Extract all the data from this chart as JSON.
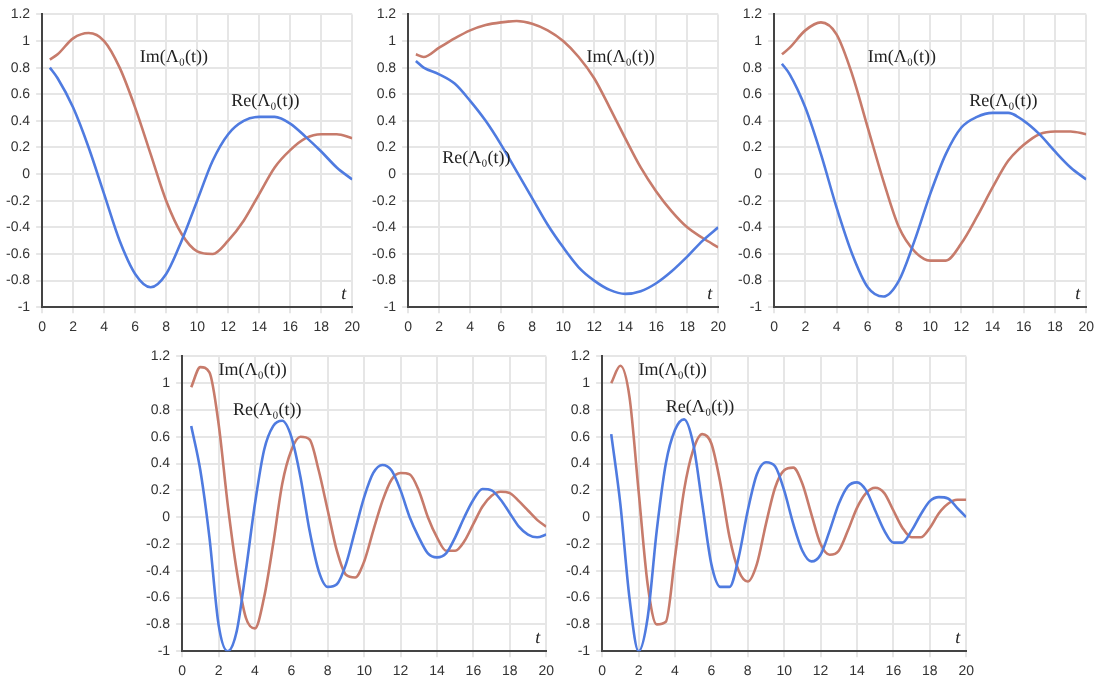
{
  "chart_data": [
    {
      "type": "line",
      "xlabel": "t",
      "grid": true,
      "xlim": [
        0,
        20
      ],
      "xticks": [
        0,
        2,
        4,
        6,
        8,
        10,
        12,
        14,
        16,
        18,
        20
      ],
      "ylim": [
        -1,
        1.2
      ],
      "yticks": [
        -1,
        -0.8,
        -0.6,
        -0.4,
        -0.2,
        0,
        0.2,
        0.4,
        0.6,
        0.8,
        1,
        1.2
      ],
      "x": [
        0.5,
        1,
        2,
        3,
        4,
        5,
        6,
        7,
        8,
        9,
        10,
        11,
        12,
        13,
        14,
        15,
        16,
        17,
        18,
        19,
        20
      ],
      "series": [
        {
          "name": "Re(Λ₀(t))",
          "color": "#4f7be0",
          "values": [
            0.8,
            0.72,
            0.5,
            0.2,
            -0.15,
            -0.5,
            -0.75,
            -0.85,
            -0.75,
            -0.5,
            -0.2,
            0.1,
            0.3,
            0.4,
            0.43,
            0.43,
            0.38,
            0.28,
            0.17,
            0.05,
            -0.04
          ]
        },
        {
          "name": "Im(Λ₀(t))",
          "color": "#c77b6b",
          "values": [
            0.86,
            0.9,
            1.02,
            1.06,
            1.0,
            0.8,
            0.5,
            0.15,
            -0.2,
            -0.45,
            -0.58,
            -0.6,
            -0.5,
            -0.35,
            -0.15,
            0.05,
            0.18,
            0.27,
            0.3,
            0.3,
            0.27
          ]
        }
      ]
    },
    {
      "type": "line",
      "xlabel": "t",
      "grid": true,
      "xlim": [
        0,
        20
      ],
      "xticks": [
        0,
        2,
        4,
        6,
        8,
        10,
        12,
        14,
        16,
        18,
        20
      ],
      "ylim": [
        -1,
        1.2
      ],
      "yticks": [
        -1,
        -0.8,
        -0.6,
        -0.4,
        -0.2,
        0,
        0.2,
        0.4,
        0.6,
        0.8,
        1,
        1.2
      ],
      "x": [
        0.5,
        1,
        2,
        3,
        4,
        5,
        6,
        7,
        8,
        9,
        10,
        11,
        12,
        13,
        14,
        15,
        16,
        17,
        18,
        19,
        20
      ],
      "series": [
        {
          "name": "Re(Λ₀(t))",
          "color": "#4f7be0",
          "values": [
            0.85,
            0.8,
            0.75,
            0.68,
            0.55,
            0.4,
            0.22,
            0.02,
            -0.18,
            -0.38,
            -0.55,
            -0.7,
            -0.8,
            -0.87,
            -0.9,
            -0.88,
            -0.82,
            -0.73,
            -0.62,
            -0.5,
            -0.4
          ]
        },
        {
          "name": "Im(Λ₀(t))",
          "color": "#c77b6b",
          "values": [
            0.9,
            0.88,
            0.95,
            1.02,
            1.08,
            1.12,
            1.14,
            1.15,
            1.13,
            1.08,
            1.0,
            0.88,
            0.72,
            0.5,
            0.27,
            0.05,
            -0.13,
            -0.28,
            -0.4,
            -0.48,
            -0.55
          ]
        }
      ]
    },
    {
      "type": "line",
      "xlabel": "t",
      "grid": true,
      "xlim": [
        0,
        20
      ],
      "xticks": [
        0,
        2,
        4,
        6,
        8,
        10,
        12,
        14,
        16,
        18,
        20
      ],
      "ylim": [
        -1,
        1.2
      ],
      "yticks": [
        -1,
        -0.8,
        -0.6,
        -0.4,
        -0.2,
        0,
        0.2,
        0.4,
        0.6,
        0.8,
        1,
        1.2
      ],
      "x": [
        0.5,
        1,
        2,
        3,
        4,
        5,
        6,
        7,
        8,
        9,
        10,
        11,
        12,
        13,
        14,
        15,
        16,
        17,
        18,
        19,
        20
      ],
      "series": [
        {
          "name": "Re(Λ₀(t))",
          "color": "#4f7be0",
          "values": [
            0.83,
            0.75,
            0.5,
            0.15,
            -0.25,
            -0.6,
            -0.85,
            -0.92,
            -0.8,
            -0.5,
            -0.15,
            0.15,
            0.35,
            0.43,
            0.46,
            0.46,
            0.4,
            0.3,
            0.17,
            0.05,
            -0.04
          ]
        },
        {
          "name": "Im(Λ₀(t))",
          "color": "#c77b6b",
          "values": [
            0.9,
            0.95,
            1.08,
            1.14,
            1.05,
            0.75,
            0.35,
            -0.05,
            -0.4,
            -0.58,
            -0.65,
            -0.65,
            -0.52,
            -0.32,
            -0.1,
            0.1,
            0.22,
            0.3,
            0.32,
            0.32,
            0.3
          ]
        }
      ]
    },
    {
      "type": "line",
      "xlabel": "t",
      "grid": true,
      "xlim": [
        0,
        20
      ],
      "xticks": [
        0,
        2,
        4,
        6,
        8,
        10,
        12,
        14,
        16,
        18,
        20
      ],
      "ylim": [
        -1,
        1.2
      ],
      "yticks": [
        -1,
        -0.8,
        -0.6,
        -0.4,
        -0.2,
        0,
        0.2,
        0.4,
        0.6,
        0.8,
        1,
        1.2
      ],
      "x": [
        0.5,
        1,
        1.5,
        2,
        2.5,
        3,
        3.5,
        4,
        4.5,
        5,
        5.5,
        6,
        6.5,
        7,
        7.5,
        8,
        8.5,
        9,
        9.5,
        10,
        10.5,
        11,
        11.5,
        12,
        12.5,
        13,
        13.5,
        14,
        14.5,
        15,
        15.5,
        16,
        16.5,
        17,
        17.5,
        18,
        18.5,
        19,
        19.5,
        20
      ],
      "series": [
        {
          "name": "Re(Λ₀(t))",
          "color": "#4f7be0",
          "values": [
            0.68,
            0.35,
            -0.15,
            -0.8,
            -1.0,
            -0.85,
            -0.4,
            0.1,
            0.5,
            0.68,
            0.72,
            0.6,
            0.3,
            -0.1,
            -0.4,
            -0.52,
            -0.5,
            -0.35,
            -0.1,
            0.15,
            0.33,
            0.39,
            0.35,
            0.2,
            0.0,
            -0.15,
            -0.27,
            -0.3,
            -0.27,
            -0.15,
            0.0,
            0.13,
            0.21,
            0.2,
            0.13,
            0.03,
            -0.07,
            -0.13,
            -0.15,
            -0.13
          ]
        },
        {
          "name": "Im(Λ₀(t))",
          "color": "#c77b6b",
          "values": [
            0.97,
            1.12,
            1.08,
            0.7,
            0.1,
            -0.4,
            -0.75,
            -0.83,
            -0.6,
            -0.2,
            0.25,
            0.5,
            0.6,
            0.58,
            0.35,
            0.05,
            -0.25,
            -0.43,
            -0.45,
            -0.33,
            -0.1,
            0.12,
            0.28,
            0.33,
            0.32,
            0.2,
            0.0,
            -0.15,
            -0.25,
            -0.25,
            -0.18,
            -0.05,
            0.08,
            0.16,
            0.19,
            0.18,
            0.12,
            0.05,
            -0.02,
            -0.07
          ]
        }
      ]
    },
    {
      "type": "line",
      "xlabel": "t",
      "grid": true,
      "xlim": [
        0,
        20
      ],
      "xticks": [
        0,
        2,
        4,
        6,
        8,
        10,
        12,
        14,
        16,
        18,
        20
      ],
      "ylim": [
        -1,
        1.2
      ],
      "yticks": [
        -1,
        -0.8,
        -0.6,
        -0.4,
        -0.2,
        0,
        0.2,
        0.4,
        0.6,
        0.8,
        1,
        1.2
      ],
      "x": [
        0.5,
        1,
        1.5,
        2,
        2.5,
        3,
        3.5,
        4,
        4.5,
        5,
        5.5,
        6,
        6.5,
        7,
        7.5,
        8,
        8.5,
        9,
        9.5,
        10,
        10.5,
        11,
        11.5,
        12,
        12.5,
        13,
        13.5,
        14,
        14.5,
        15,
        15.5,
        16,
        16.5,
        17,
        17.5,
        18,
        18.5,
        19,
        19.5,
        20
      ],
      "series": [
        {
          "name": "Re(Λ₀(t))",
          "color": "#4f7be0",
          "values": [
            0.62,
            0.1,
            -0.6,
            -1.0,
            -0.75,
            -0.1,
            0.4,
            0.65,
            0.73,
            0.55,
            0.1,
            -0.35,
            -0.52,
            -0.52,
            -0.3,
            0.05,
            0.32,
            0.41,
            0.38,
            0.2,
            -0.05,
            -0.25,
            -0.33,
            -0.28,
            -0.1,
            0.1,
            0.23,
            0.26,
            0.2,
            0.05,
            -0.1,
            -0.19,
            -0.19,
            -0.1,
            0.02,
            0.12,
            0.15,
            0.14,
            0.07,
            0.0
          ]
        },
        {
          "name": "Im(Λ₀(t))",
          "color": "#c77b6b",
          "values": [
            1.0,
            1.13,
            0.9,
            0.2,
            -0.5,
            -0.8,
            -0.78,
            -0.3,
            0.2,
            0.5,
            0.62,
            0.55,
            0.25,
            -0.15,
            -0.4,
            -0.48,
            -0.35,
            -0.05,
            0.22,
            0.35,
            0.37,
            0.25,
            0.02,
            -0.2,
            -0.28,
            -0.25,
            -0.1,
            0.07,
            0.18,
            0.22,
            0.18,
            0.05,
            -0.08,
            -0.15,
            -0.15,
            -0.08,
            0.03,
            0.1,
            0.13,
            0.13
          ]
        }
      ]
    }
  ]
}
